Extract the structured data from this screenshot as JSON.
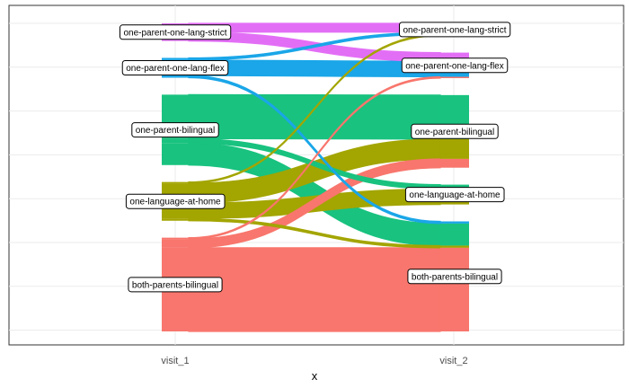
{
  "chart_data": {
    "type": "alluvial",
    "xlabel": "x",
    "axes": [
      "visit_1",
      "visit_2"
    ],
    "ylim": [
      0,
      70
    ],
    "grid": true,
    "legend": "none",
    "categories": [
      {
        "name": "one-parent-one-lang-strict",
        "color": "#E36EF6"
      },
      {
        "name": "one-parent-one-lang-flex",
        "color": "#1AA6E8"
      },
      {
        "name": "one-parent-bilingual",
        "color": "#19C27F"
      },
      {
        "name": "one-language-at-home",
        "color": "#A3A500"
      },
      {
        "name": "both-parents-bilingual",
        "color": "#F8766D"
      }
    ],
    "node_labels": {
      "visit_1": [
        "one-parent-one-lang-strict",
        "one-parent-one-lang-flex",
        "one-parent-bilingual",
        "one-language-at-home",
        "both-parents-bilingual"
      ],
      "visit_2": [
        "one-parent-one-lang-strict",
        "one-parent-one-lang-flex",
        "one-parent-bilingual",
        "one-language-at-home",
        "both-parents-bilingual"
      ]
    },
    "flows": [
      {
        "from": "one-parent-one-lang-strict",
        "to": "one-parent-one-lang-strict",
        "value": 2
      },
      {
        "from": "one-parent-one-lang-strict",
        "to": "one-parent-one-lang-flex",
        "value": 2
      },
      {
        "from": "one-parent-one-lang-flex",
        "to": "one-parent-one-lang-strict",
        "value": 0.5
      },
      {
        "from": "one-parent-one-lang-flex",
        "to": "one-parent-one-lang-flex",
        "value": 3.5
      },
      {
        "from": "one-parent-one-lang-flex",
        "to": "both-parents-bilingual",
        "value": 0.5
      },
      {
        "from": "one-parent-bilingual",
        "to": "one-parent-bilingual",
        "value": 10
      },
      {
        "from": "one-parent-bilingual",
        "to": "one-language-at-home",
        "value": 1
      },
      {
        "from": "one-parent-bilingual",
        "to": "both-parents-bilingual",
        "value": 5
      },
      {
        "from": "one-language-at-home",
        "to": "one-parent-one-lang-strict",
        "value": 0.3
      },
      {
        "from": "one-language-at-home",
        "to": "one-parent-bilingual",
        "value": 4.5
      },
      {
        "from": "one-language-at-home",
        "to": "one-language-at-home",
        "value": 3.5
      },
      {
        "from": "one-language-at-home",
        "to": "both-parents-bilingual",
        "value": 0.5
      },
      {
        "from": "both-parents-bilingual",
        "to": "one-parent-one-lang-flex",
        "value": 0.3
      },
      {
        "from": "both-parents-bilingual",
        "to": "one-parent-bilingual",
        "value": 2
      },
      {
        "from": "both-parents-bilingual",
        "to": "both-parents-bilingual",
        "value": 19
      }
    ]
  }
}
